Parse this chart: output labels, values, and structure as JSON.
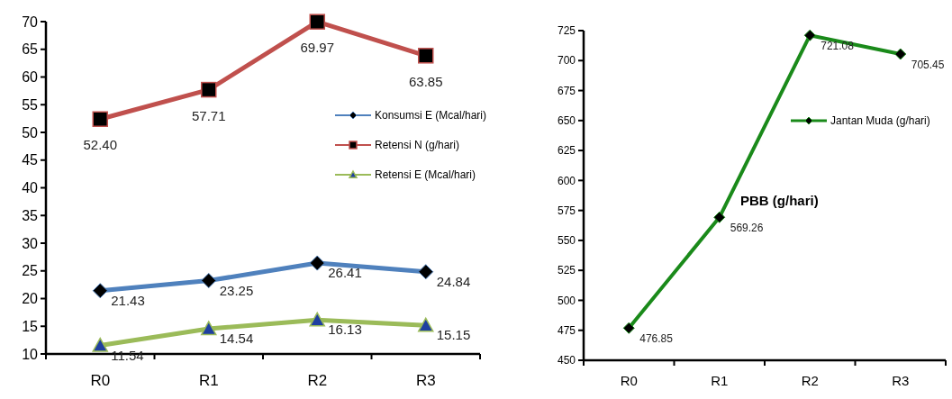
{
  "chart_data": [
    {
      "type": "line",
      "categories": [
        "R0",
        "R1",
        "R2",
        "R3"
      ],
      "ylim": [
        10,
        70
      ],
      "yticks": [
        10,
        15,
        20,
        25,
        30,
        35,
        40,
        45,
        50,
        55,
        60,
        65,
        70
      ],
      "legend": "right",
      "data_labels": true,
      "series": [
        {
          "name": "Konsumsi E (Mcal/hari)",
          "color": "#4f81bd",
          "marker": "diamond",
          "values": [
            21.43,
            23.25,
            26.41,
            24.84
          ]
        },
        {
          "name": "Retensi N (g/hari)",
          "color": "#c0504d",
          "marker": "square",
          "values": [
            52.4,
            57.71,
            69.97,
            63.85
          ],
          "value_labels": [
            "52.40",
            "57.71",
            "69.97",
            "63.85"
          ]
        },
        {
          "name": "Retensi E (Mcal/hari)",
          "color": "#9bbb59",
          "marker": "triangle",
          "values": [
            11.54,
            14.54,
            16.13,
            15.15
          ]
        }
      ]
    },
    {
      "type": "line",
      "title": "PBB (g/hari)",
      "categories": [
        "R0",
        "R1",
        "R2",
        "R3"
      ],
      "ylim": [
        450,
        725
      ],
      "yticks": [
        450,
        475,
        500,
        525,
        550,
        575,
        600,
        625,
        650,
        675,
        700,
        725
      ],
      "legend": "right",
      "data_labels": true,
      "series": [
        {
          "name": "Jantan Muda  (g/hari)",
          "color": "#1a8a1a",
          "marker": "diamond",
          "values": [
            476.85,
            569.26,
            721.08,
            705.45
          ]
        }
      ]
    }
  ]
}
